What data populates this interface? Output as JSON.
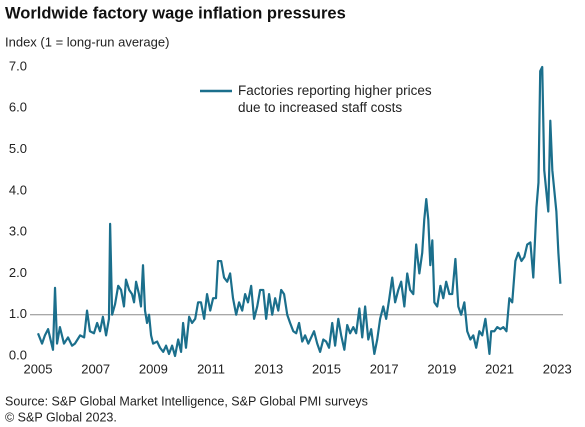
{
  "chart_data": {
    "type": "line",
    "title": "Worldwide factory wage inflation pressures",
    "subtitle": "Index (1 = long-run average)",
    "source": "Source: S&P Global Market Intelligence, S&P Global PMI surveys",
    "copyright": "© S&P Global 2023.",
    "xlim": [
      2005,
      2023.2
    ],
    "xticks": [
      2005,
      2007,
      2009,
      2011,
      2013,
      2015,
      2017,
      2019,
      2021,
      2023
    ],
    "ylim": [
      0,
      7
    ],
    "yticks": [
      {
        "value": 0,
        "label": "0.0"
      },
      {
        "value": 1,
        "label": "1.0"
      },
      {
        "value": 2,
        "label": "2.0"
      },
      {
        "value": 3,
        "label": "3.0"
      },
      {
        "value": 4,
        "label": "4.0"
      },
      {
        "value": 5,
        "label": "5.0"
      },
      {
        "value": 6,
        "label": "6.0"
      },
      {
        "value": 7,
        "label": "7.0"
      }
    ],
    "reference_line": 1,
    "x": [
      2005.0,
      2005.14,
      2005.24,
      2005.35,
      2005.45,
      2005.52,
      2005.59,
      2005.66,
      2005.76,
      2005.9,
      2006.04,
      2006.18,
      2006.28,
      2006.46,
      2006.6,
      2006.7,
      2006.8,
      2006.94,
      2007.05,
      2007.15,
      2007.25,
      2007.36,
      2007.46,
      2007.5,
      2007.57,
      2007.67,
      2007.78,
      2007.88,
      2007.98,
      2008.05,
      2008.16,
      2008.26,
      2008.33,
      2008.4,
      2008.5,
      2008.57,
      2008.64,
      2008.71,
      2008.78,
      2008.85,
      2008.92,
      2008.99,
      2009.13,
      2009.23,
      2009.34,
      2009.44,
      2009.54,
      2009.65,
      2009.75,
      2009.86,
      2009.96,
      2010.03,
      2010.13,
      2010.24,
      2010.34,
      2010.45,
      2010.55,
      2010.65,
      2010.76,
      2010.86,
      2010.97,
      2011.07,
      2011.17,
      2011.24,
      2011.35,
      2011.45,
      2011.56,
      2011.66,
      2011.76,
      2011.87,
      2011.97,
      2012.08,
      2012.18,
      2012.28,
      2012.39,
      2012.49,
      2012.6,
      2012.7,
      2012.81,
      2012.91,
      2013.01,
      2013.12,
      2013.22,
      2013.33,
      2013.43,
      2013.53,
      2013.64,
      2013.74,
      2013.85,
      2013.95,
      2014.05,
      2014.16,
      2014.26,
      2014.37,
      2014.47,
      2014.57,
      2014.68,
      2014.78,
      2014.89,
      2014.99,
      2015.09,
      2015.2,
      2015.3,
      2015.41,
      2015.51,
      2015.62,
      2015.72,
      2015.82,
      2015.93,
      2016.03,
      2016.14,
      2016.24,
      2016.34,
      2016.45,
      2016.55,
      2016.66,
      2016.76,
      2016.86,
      2016.97,
      2017.07,
      2017.18,
      2017.28,
      2017.38,
      2017.49,
      2017.59,
      2017.7,
      2017.8,
      2017.9,
      2018.01,
      2018.11,
      2018.22,
      2018.32,
      2018.39,
      2018.46,
      2018.53,
      2018.6,
      2018.67,
      2018.74,
      2018.84,
      2018.95,
      2019.05,
      2019.15,
      2019.26,
      2019.36,
      2019.47,
      2019.57,
      2019.67,
      2019.78,
      2019.88,
      2019.99,
      2020.09,
      2020.19,
      2020.3,
      2020.4,
      2020.51,
      2020.58,
      2020.65,
      2020.71,
      2020.82,
      2020.92,
      2021.03,
      2021.13,
      2021.24,
      2021.34,
      2021.44,
      2021.55,
      2021.65,
      2021.76,
      2021.86,
      2021.96,
      2022.07,
      2022.17,
      2022.28,
      2022.35,
      2022.41,
      2022.48,
      2022.55,
      2022.62,
      2022.69,
      2022.76,
      2022.83,
      2022.9,
      2022.97,
      2023.04,
      2023.11
    ],
    "series": [
      {
        "name": "Factories reporting higher prices due to increased staff costs",
        "color": "#1b6f8c",
        "values": [
          0.55,
          0.3,
          0.5,
          0.65,
          0.35,
          0.15,
          1.65,
          0.3,
          0.7,
          0.3,
          0.45,
          0.25,
          0.3,
          0.5,
          0.45,
          1.1,
          0.6,
          0.55,
          0.8,
          0.6,
          0.95,
          0.5,
          0.9,
          3.2,
          1.0,
          1.25,
          1.7,
          1.6,
          1.2,
          1.85,
          1.6,
          1.5,
          1.3,
          1.8,
          1.5,
          1.2,
          2.2,
          1.1,
          0.8,
          1.0,
          0.5,
          0.3,
          0.35,
          0.2,
          0.1,
          0.25,
          0.05,
          0.25,
          0.0,
          0.4,
          0.1,
          0.8,
          0.2,
          0.95,
          0.8,
          0.9,
          1.3,
          1.3,
          0.9,
          1.5,
          1.1,
          1.4,
          1.4,
          2.3,
          2.3,
          1.9,
          1.8,
          2.0,
          1.4,
          1.0,
          1.3,
          1.1,
          1.5,
          1.3,
          1.7,
          0.9,
          1.2,
          1.6,
          1.6,
          0.9,
          1.5,
          1.0,
          1.4,
          1.1,
          1.6,
          1.5,
          1.0,
          0.8,
          0.6,
          0.55,
          0.8,
          0.35,
          0.5,
          0.3,
          0.45,
          0.6,
          0.3,
          0.1,
          0.4,
          0.35,
          0.2,
          0.8,
          0.25,
          0.9,
          0.5,
          0.15,
          0.75,
          0.55,
          0.7,
          0.55,
          1.15,
          0.45,
          1.2,
          0.4,
          0.65,
          0.05,
          0.4,
          0.9,
          1.2,
          0.9,
          1.4,
          1.9,
          1.3,
          1.6,
          1.8,
          1.2,
          2.0,
          1.6,
          1.5,
          2.7,
          2.0,
          2.5,
          3.3,
          3.8,
          3.3,
          2.2,
          2.8,
          1.3,
          1.2,
          1.7,
          1.4,
          1.8,
          1.5,
          1.5,
          2.35,
          1.2,
          1.0,
          1.3,
          0.6,
          0.4,
          0.5,
          0.2,
          0.6,
          0.5,
          0.9,
          0.5,
          0.05,
          0.6,
          0.6,
          0.7,
          0.65,
          0.7,
          0.6,
          1.4,
          1.3,
          2.3,
          2.5,
          2.3,
          2.4,
          2.7,
          2.75,
          1.9,
          3.6,
          4.2,
          6.9,
          7.0,
          4.5,
          4.0,
          3.5,
          5.7,
          4.5,
          4.0,
          3.5,
          2.5,
          1.75
        ]
      }
    ]
  }
}
